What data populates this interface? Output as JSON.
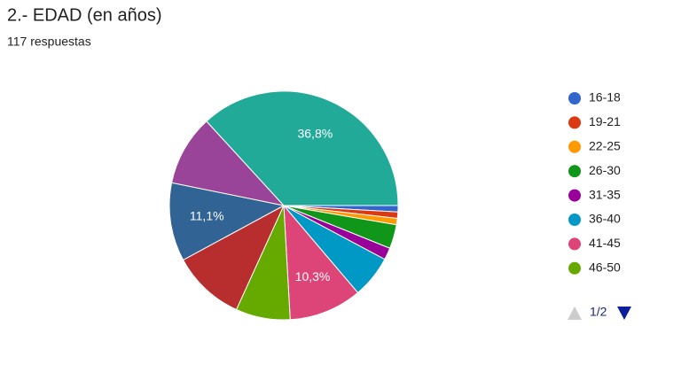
{
  "chart_data": {
    "type": "pie",
    "title": "2.- EDAD (en años)",
    "subtitle": "117 respuestas",
    "categories": [
      "16-18",
      "19-21",
      "22-25",
      "26-30",
      "31-35",
      "36-40",
      "41-45",
      "46-50",
      null,
      null,
      null,
      null
    ],
    "values": [
      0.9,
      0.9,
      0.9,
      3.4,
      1.7,
      6.0,
      10.3,
      7.7,
      10.3,
      11.1,
      10.0,
      36.8
    ],
    "value_labels": [
      null,
      null,
      null,
      null,
      null,
      null,
      "10,3%",
      null,
      null,
      "11,1%",
      null,
      "36,8%"
    ],
    "colors": [
      "#3366cc",
      "#dc3912",
      "#ff9900",
      "#109618",
      "#990099",
      "#0099c6",
      "#dd4477",
      "#66aa00",
      "#b82e2e",
      "#316395",
      "#994499",
      "#22aa99"
    ],
    "legend_page": "1/2",
    "legend": "right"
  }
}
